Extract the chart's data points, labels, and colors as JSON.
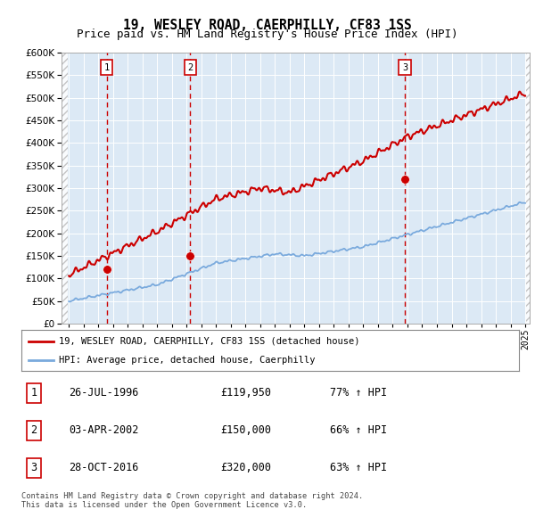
{
  "title": "19, WESLEY ROAD, CAERPHILLY, CF83 1SS",
  "subtitle": "Price paid vs. HM Land Registry's House Price Index (HPI)",
  "ylim": [
    0,
    600000
  ],
  "yticks": [
    0,
    50000,
    100000,
    150000,
    200000,
    250000,
    300000,
    350000,
    400000,
    450000,
    500000,
    550000,
    600000
  ],
  "plot_bg": "#dce9f5",
  "sale_dates": [
    1996.57,
    2002.25,
    2016.83
  ],
  "sale_prices": [
    119950,
    150000,
    320000
  ],
  "sale_labels": [
    "1",
    "2",
    "3"
  ],
  "vline_color": "#cc0000",
  "legend_label_red": "19, WESLEY ROAD, CAERPHILLY, CF83 1SS (detached house)",
  "legend_label_blue": "HPI: Average price, detached house, Caerphilly",
  "table_rows": [
    [
      "1",
      "26-JUL-1996",
      "£119,950",
      "77% ↑ HPI"
    ],
    [
      "2",
      "03-APR-2002",
      "£150,000",
      "66% ↑ HPI"
    ],
    [
      "3",
      "28-OCT-2016",
      "£320,000",
      "63% ↑ HPI"
    ]
  ],
  "footer": "Contains HM Land Registry data © Crown copyright and database right 2024.\nThis data is licensed under the Open Government Licence v3.0.",
  "red_line_color": "#cc0000",
  "blue_line_color": "#7aaadd",
  "xmin": 1994,
  "xmax": 2025
}
